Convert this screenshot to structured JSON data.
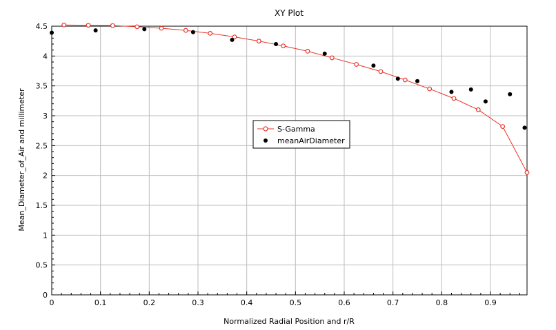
{
  "chart_data": {
    "type": "line",
    "title": "XY Plot",
    "xlabel": "Normalized Radial Position and r/R",
    "ylabel": "Mean_Diameter_of_Air and millimeter",
    "xlim": [
      0,
      0.975
    ],
    "ylim": [
      0,
      4.5
    ],
    "xticks": [
      "0",
      "0.1",
      "0.2",
      "0.3",
      "0.4",
      "0.5",
      "0.6",
      "0.7",
      "0.8",
      "0.9"
    ],
    "yticks": [
      "0",
      "0.5",
      "1",
      "1.5",
      "2",
      "2.5",
      "3",
      "3.5",
      "4",
      "4.5"
    ],
    "grid": true,
    "legend_position": "center",
    "series": [
      {
        "name": "S-Gamma",
        "style": "line-open-circle",
        "color": "#e8342a",
        "x": [
          0.025,
          0.075,
          0.125,
          0.175,
          0.225,
          0.275,
          0.325,
          0.375,
          0.425,
          0.475,
          0.525,
          0.575,
          0.625,
          0.675,
          0.725,
          0.775,
          0.825,
          0.875,
          0.925,
          0.975
        ],
        "y": [
          4.52,
          4.515,
          4.51,
          4.49,
          4.465,
          4.43,
          4.38,
          4.32,
          4.25,
          4.17,
          4.08,
          3.97,
          3.86,
          3.74,
          3.6,
          3.45,
          3.29,
          3.1,
          2.82,
          2.05
        ]
      },
      {
        "name": "meanAirDiameter",
        "style": "filled-circle",
        "color": "#000000",
        "x": [
          0.0,
          0.09,
          0.19,
          0.29,
          0.37,
          0.46,
          0.56,
          0.66,
          0.71,
          0.75,
          0.82,
          0.86,
          0.89,
          0.94,
          0.97
        ],
        "y": [
          4.39,
          4.43,
          4.45,
          4.4,
          4.27,
          4.2,
          4.04,
          3.84,
          3.62,
          3.58,
          3.4,
          3.44,
          3.24,
          3.36,
          2.8
        ]
      }
    ]
  }
}
